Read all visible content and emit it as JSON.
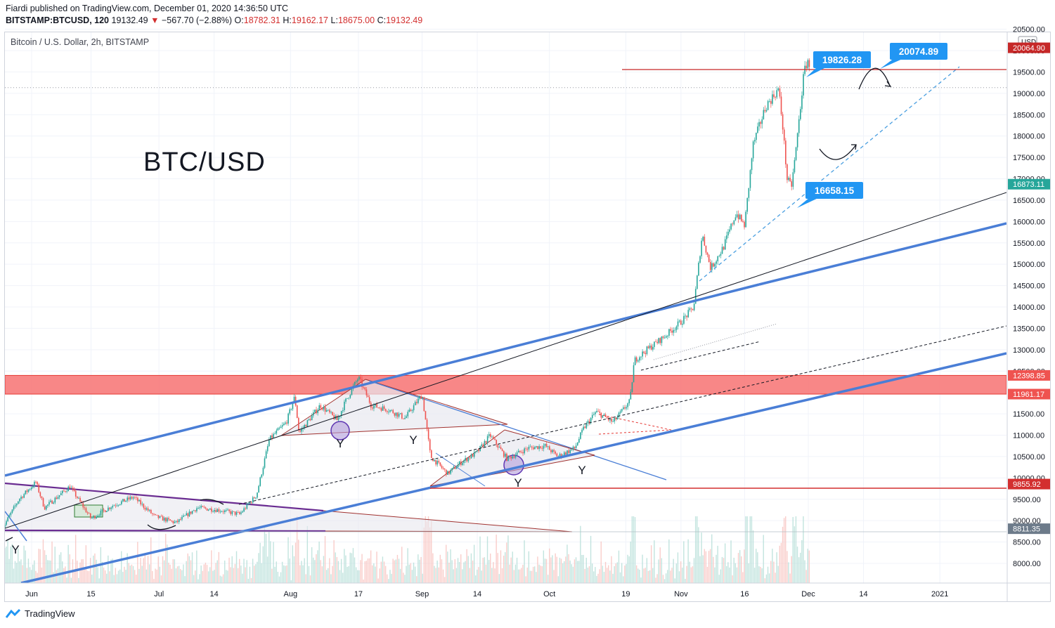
{
  "header": {
    "published": "Fiardi published on TradingView.com, December 01, 2020 14:36:50 UTC",
    "symbol": "BITSTAMP:BTCUSD, 120",
    "last": "19132.49",
    "change": "−567.70 (−2.88%)",
    "o_label": "O:",
    "o_value": "18782.31",
    "h_label": "H:",
    "h_value": "19162.17",
    "l_label": "L:",
    "l_value": "18675.00",
    "c_label": "C:",
    "c_value": "19132.49"
  },
  "footer": {
    "brand": "TradingView"
  },
  "chart_data": {
    "type": "candlestick",
    "title": "BTC/USD",
    "legend": "Bitcoin / U.S. Dollar, 2h, BITSTAMP",
    "currency": "USD",
    "ylim": [
      7650,
      20600
    ],
    "y_ticks": [
      "8000.00",
      "8500.00",
      "9000.00",
      "9500.00",
      "10000.00",
      "10500.00",
      "11000.00",
      "11500.00",
      "12000.00",
      "12500.00",
      "13000.00",
      "13500.00",
      "14000.00",
      "14500.00",
      "15000.00",
      "15500.00",
      "16000.00",
      "16500.00",
      "17000.00",
      "17500.00",
      "18000.00",
      "18500.00",
      "19000.00",
      "19500.00",
      "20000.00",
      "20500.00"
    ],
    "x_ticks": [
      "Jun",
      "15",
      "Jul",
      "14",
      "Aug",
      "17",
      "Sep",
      "14",
      "Oct",
      "19",
      "Nov",
      "16",
      "Dec",
      "14",
      "2021"
    ],
    "price_path": [
      [
        "2020-05-25",
        8800
      ],
      [
        "2020-05-29",
        9500
      ],
      [
        "2020-06-02",
        9900
      ],
      [
        "2020-06-04",
        9300
      ],
      [
        "2020-06-10",
        9800
      ],
      [
        "2020-06-15",
        9050
      ],
      [
        "2020-06-20",
        9350
      ],
      [
        "2020-06-25",
        9550
      ],
      [
        "2020-06-30",
        9100
      ],
      [
        "2020-07-05",
        8950
      ],
      [
        "2020-07-10",
        9300
      ],
      [
        "2020-07-15",
        9250
      ],
      [
        "2020-07-20",
        9150
      ],
      [
        "2020-07-24",
        9600
      ],
      [
        "2020-07-27",
        10900
      ],
      [
        "2020-07-31",
        11300
      ],
      [
        "2020-08-02",
        11900
      ],
      [
        "2020-08-03",
        11050
      ],
      [
        "2020-08-08",
        11700
      ],
      [
        "2020-08-12",
        11350
      ],
      [
        "2020-08-14",
        11800
      ],
      [
        "2020-08-17",
        12350
      ],
      [
        "2020-08-20",
        11700
      ],
      [
        "2020-08-24",
        11600
      ],
      [
        "2020-08-28",
        11400
      ],
      [
        "2020-09-01",
        11950
      ],
      [
        "2020-09-03",
        10500
      ],
      [
        "2020-09-07",
        10100
      ],
      [
        "2020-09-10",
        10350
      ],
      [
        "2020-09-14",
        10600
      ],
      [
        "2020-09-17",
        11000
      ],
      [
        "2020-09-21",
        10450
      ],
      [
        "2020-09-26",
        10700
      ],
      [
        "2020-09-30",
        10750
      ],
      [
        "2020-10-03",
        10500
      ],
      [
        "2020-10-07",
        10700
      ],
      [
        "2020-10-09",
        11150
      ],
      [
        "2020-10-12",
        11550
      ],
      [
        "2020-10-16",
        11300
      ],
      [
        "2020-10-20",
        11800
      ],
      [
        "2020-10-21",
        12750
      ],
      [
        "2020-10-24",
        13000
      ],
      [
        "2020-10-28",
        13300
      ],
      [
        "2020-11-01",
        13650
      ],
      [
        "2020-11-04",
        14000
      ],
      [
        "2020-11-06",
        15700
      ],
      [
        "2020-11-08",
        14900
      ],
      [
        "2020-11-11",
        15400
      ],
      [
        "2020-11-14",
        16200
      ],
      [
        "2020-11-16",
        15900
      ],
      [
        "2020-11-18",
        17800
      ],
      [
        "2020-11-21",
        18700
      ],
      [
        "2020-11-24",
        19100
      ],
      [
        "2020-11-25",
        18200
      ],
      [
        "2020-11-26",
        17000
      ],
      [
        "2020-11-27",
        16800
      ],
      [
        "2020-11-28",
        17600
      ],
      [
        "2020-11-30",
        19500
      ],
      [
        "2020-12-01",
        19826.28
      ],
      [
        "2020-12-01T14",
        19132.49
      ]
    ],
    "price_labels": [
      {
        "value": 20064.9,
        "text": "20064.90",
        "color": "#c62828"
      },
      {
        "value": 16873.11,
        "text": "16873.11",
        "color": "#26a69a"
      },
      {
        "value": 12398.85,
        "text": "12398.85",
        "color": "#ef5350"
      },
      {
        "value": 11961.17,
        "text": "11961.17",
        "color": "#ef5350"
      },
      {
        "value": 9855.92,
        "text": "9855.92",
        "color": "#d32f2f"
      },
      {
        "value": 8811.35,
        "text": "8811.35",
        "color": "#6d7b8a"
      }
    ],
    "callouts": [
      {
        "text": "19826.28",
        "value": 19826.28,
        "color": "#2196f3"
      },
      {
        "text": "20074.89",
        "value": 20074.89,
        "color": "#2196f3"
      },
      {
        "text": "16658.15",
        "value": 16658.15,
        "color": "#2196f3"
      }
    ],
    "resistance_zone": [
      11961.17,
      12398.85
    ],
    "annotations": [
      "Y",
      "Y",
      "Y",
      "Y",
      "Y"
    ],
    "colors": {
      "up": "#26a69a",
      "down": "#ef5350",
      "channel": "#4a7ed6",
      "zone": "#f77272"
    }
  }
}
